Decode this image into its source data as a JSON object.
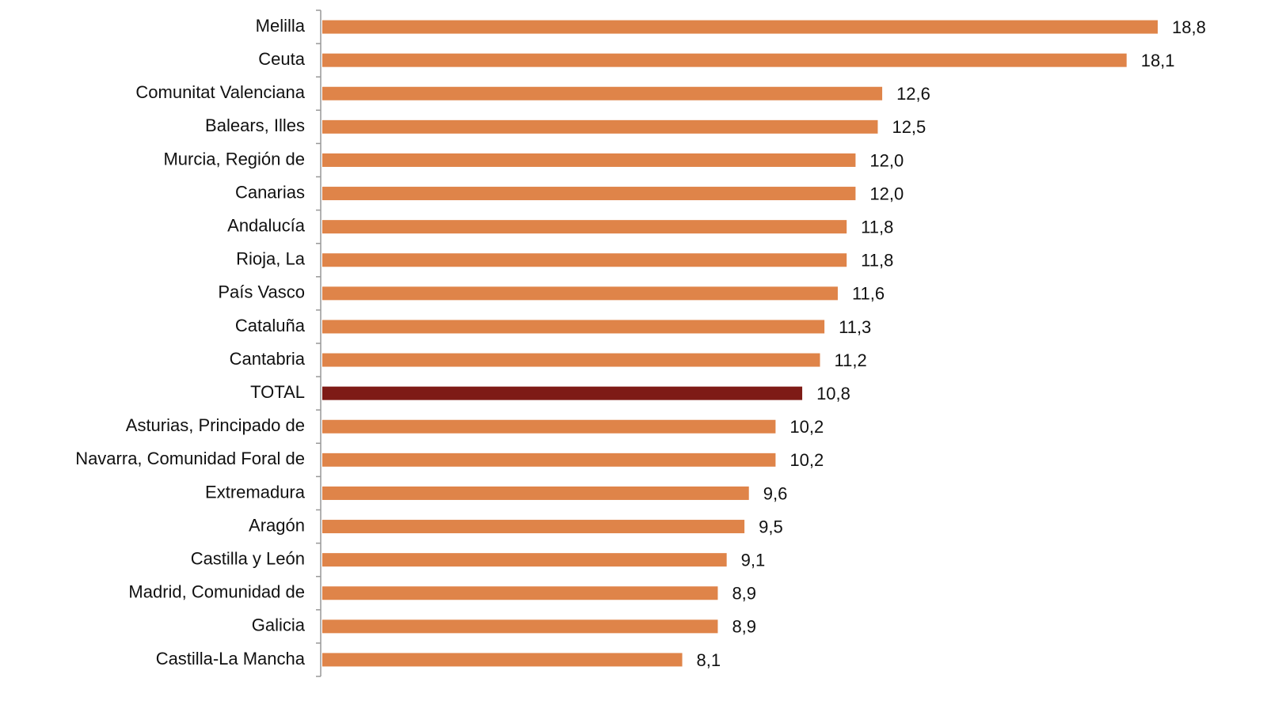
{
  "chart_data": {
    "type": "bar",
    "orientation": "horizontal",
    "categories": [
      "Melilla",
      "Ceuta",
      "Comunitat Valenciana",
      "Balears, Illes",
      "Murcia, Región de",
      "Canarias",
      "Andalucía",
      "Rioja, La",
      "País Vasco",
      "Cataluña",
      "Cantabria",
      "TOTAL",
      "Asturias, Principado de",
      "Navarra, Comunidad Foral de",
      "Extremadura",
      "Aragón",
      "Castilla y León",
      "Madrid, Comunidad de",
      "Galicia",
      "Castilla-La Mancha"
    ],
    "values": [
      18.8,
      18.1,
      12.6,
      12.5,
      12.0,
      12.0,
      11.8,
      11.8,
      11.6,
      11.3,
      11.2,
      10.8,
      10.2,
      10.2,
      9.6,
      9.5,
      9.1,
      8.9,
      8.9,
      8.1
    ],
    "value_labels": [
      "18,8",
      "18,1",
      "12,6",
      "12,5",
      "12,0",
      "12,0",
      "11,8",
      "11,8",
      "11,6",
      "11,3",
      "11,2",
      "10,8",
      "10,2",
      "10,2",
      "9,6",
      "9,5",
      "9,1",
      "8,9",
      "8,9",
      "8,1"
    ],
    "colors": [
      "#df8449",
      "#df8449",
      "#df8449",
      "#df8449",
      "#df8449",
      "#df8449",
      "#df8449",
      "#df8449",
      "#df8449",
      "#df8449",
      "#df8449",
      "#7e1b16",
      "#df8449",
      "#df8449",
      "#df8449",
      "#df8449",
      "#df8449",
      "#df8449",
      "#df8449",
      "#df8449"
    ]
  }
}
